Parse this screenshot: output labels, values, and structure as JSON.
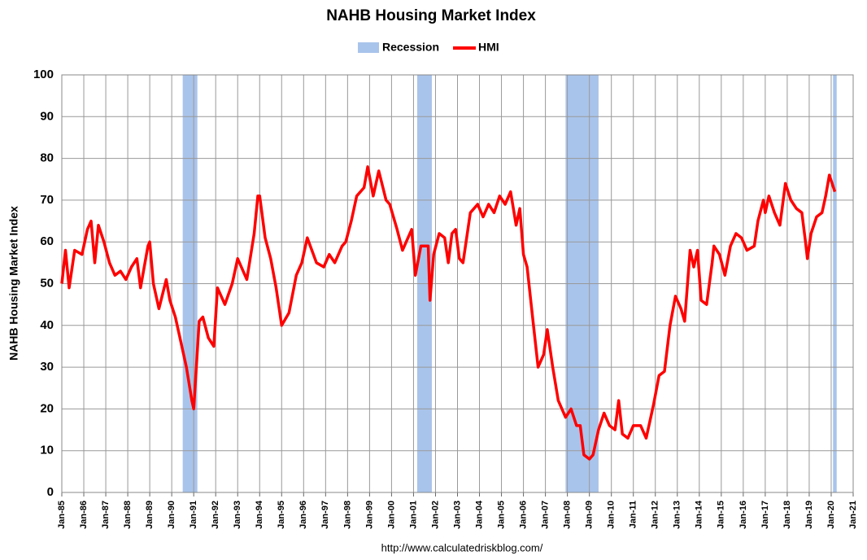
{
  "chart_data": {
    "type": "line",
    "title": "NAHB Housing Market Index",
    "y_label": "NAHB Housing Market Index",
    "source": "http://www.calculatedriskblog.com/",
    "x": [
      "1985-01",
      "1985-03",
      "1985-05",
      "1985-08",
      "1985-12",
      "1986-03",
      "1986-05",
      "1986-07",
      "1986-09",
      "1986-12",
      "1987-03",
      "1987-06",
      "1987-09",
      "1987-12",
      "1988-03",
      "1988-06",
      "1988-08",
      "1988-12",
      "1989-01",
      "1989-03",
      "1989-06",
      "1989-10",
      "1989-12",
      "1990-03",
      "1990-06",
      "1990-09",
      "1990-12",
      "1991-01",
      "1991-04",
      "1991-06",
      "1991-09",
      "1991-12",
      "1992-02",
      "1992-06",
      "1992-10",
      "1993-01",
      "1993-06",
      "1993-10",
      "1993-12",
      "1994-01",
      "1994-04",
      "1994-07",
      "1994-10",
      "1995-01",
      "1995-05",
      "1995-09",
      "1995-12",
      "1996-03",
      "1996-08",
      "1996-12",
      "1997-03",
      "1997-06",
      "1997-10",
      "1997-12",
      "1998-03",
      "1998-06",
      "1998-10",
      "1998-12",
      "1999-03",
      "1999-06",
      "1999-10",
      "1999-12",
      "2000-04",
      "2000-07",
      "2000-12",
      "2001-02",
      "2001-05",
      "2001-09",
      "2001-10",
      "2001-12",
      "2002-03",
      "2002-06",
      "2002-08",
      "2002-10",
      "2002-12",
      "2003-02",
      "2003-04",
      "2003-08",
      "2003-12",
      "2004-03",
      "2004-06",
      "2004-09",
      "2004-12",
      "2005-03",
      "2005-06",
      "2005-09",
      "2005-11",
      "2006-01",
      "2006-03",
      "2006-06",
      "2006-09",
      "2006-12",
      "2007-02",
      "2007-05",
      "2007-08",
      "2007-12",
      "2008-03",
      "2008-06",
      "2008-08",
      "2008-10",
      "2009-01",
      "2009-03",
      "2009-06",
      "2009-09",
      "2009-12",
      "2010-03",
      "2010-05",
      "2010-07",
      "2010-10",
      "2011-01",
      "2011-05",
      "2011-08",
      "2011-12",
      "2012-03",
      "2012-06",
      "2012-09",
      "2012-12",
      "2013-03",
      "2013-05",
      "2013-08",
      "2013-10",
      "2013-12",
      "2014-02",
      "2014-05",
      "2014-08",
      "2014-09",
      "2014-12",
      "2015-03",
      "2015-06",
      "2015-09",
      "2015-12",
      "2016-01",
      "2016-03",
      "2016-07",
      "2016-09",
      "2016-12",
      "2017-01",
      "2017-03",
      "2017-06",
      "2017-09",
      "2017-12",
      "2018-03",
      "2018-06",
      "2018-09",
      "2018-11",
      "2018-12",
      "2019-02",
      "2019-05",
      "2019-08",
      "2019-10",
      "2019-12",
      "2020-03"
    ],
    "series": [
      {
        "name": "HMI",
        "color": "#ff0000",
        "values": [
          50,
          58,
          49,
          58,
          57,
          63,
          65,
          55,
          64,
          60,
          55,
          52,
          53,
          51,
          54,
          56,
          49,
          59,
          60,
          50,
          44,
          51,
          46,
          42,
          36,
          30,
          22,
          20,
          41,
          42,
          37,
          35,
          49,
          45,
          50,
          56,
          51,
          62,
          71,
          71,
          61,
          56,
          49,
          40,
          43,
          52,
          55,
          61,
          55,
          54,
          57,
          55,
          59,
          60,
          65,
          71,
          73,
          78,
          71,
          77,
          70,
          69,
          63,
          58,
          63,
          52,
          59,
          59,
          46,
          57,
          62,
          61,
          55,
          62,
          63,
          56,
          55,
          67,
          69,
          66,
          69,
          67,
          71,
          69,
          72,
          64,
          68,
          57,
          54,
          42,
          30,
          33,
          39,
          30,
          22,
          18,
          20,
          16,
          16,
          9,
          8,
          9,
          15,
          19,
          16,
          15,
          22,
          14,
          13,
          16,
          16,
          13,
          21,
          28,
          29,
          40,
          47,
          44,
          41,
          58,
          54,
          58,
          46,
          45,
          55,
          59,
          57,
          52,
          59,
          62,
          61,
          60,
          58,
          59,
          65,
          70,
          67,
          71,
          67,
          64,
          74,
          70,
          68,
          67,
          60,
          56,
          62,
          66,
          67,
          71,
          76,
          72
        ]
      }
    ],
    "bands": {
      "name": "Recession",
      "color": "#a9c4eb",
      "ranges": [
        [
          "1990-07",
          "1991-03"
        ],
        [
          "2001-03",
          "2001-11"
        ],
        [
          "2007-12",
          "2009-06"
        ],
        [
          "2020-02",
          "2020-04"
        ]
      ]
    },
    "xlim": [
      "1985-01",
      "2021-01"
    ],
    "xticks": [
      {
        "value": "1985-01",
        "label": "Jan-85"
      },
      {
        "value": "1986-01",
        "label": "Jan-86"
      },
      {
        "value": "1987-01",
        "label": "Jan-87"
      },
      {
        "value": "1988-01",
        "label": "Jan-88"
      },
      {
        "value": "1989-01",
        "label": "Jan-89"
      },
      {
        "value": "1990-01",
        "label": "Jan-90"
      },
      {
        "value": "1991-01",
        "label": "Jan-91"
      },
      {
        "value": "1992-01",
        "label": "Jan-92"
      },
      {
        "value": "1993-01",
        "label": "Jan-93"
      },
      {
        "value": "1994-01",
        "label": "Jan-94"
      },
      {
        "value": "1995-01",
        "label": "Jan-95"
      },
      {
        "value": "1996-01",
        "label": "Jan-96"
      },
      {
        "value": "1997-01",
        "label": "Jan-97"
      },
      {
        "value": "1998-01",
        "label": "Jan-98"
      },
      {
        "value": "1999-01",
        "label": "Jan-99"
      },
      {
        "value": "2000-01",
        "label": "Jan-00"
      },
      {
        "value": "2001-01",
        "label": "Jan-01"
      },
      {
        "value": "2002-01",
        "label": "Jan-02"
      },
      {
        "value": "2003-01",
        "label": "Jan-03"
      },
      {
        "value": "2004-01",
        "label": "Jan-04"
      },
      {
        "value": "2005-01",
        "label": "Jan-05"
      },
      {
        "value": "2006-01",
        "label": "Jan-06"
      },
      {
        "value": "2007-01",
        "label": "Jan-07"
      },
      {
        "value": "2008-01",
        "label": "Jan-08"
      },
      {
        "value": "2009-01",
        "label": "Jan-09"
      },
      {
        "value": "2010-01",
        "label": "Jan-10"
      },
      {
        "value": "2011-01",
        "label": "Jan-11"
      },
      {
        "value": "2012-01",
        "label": "Jan-12"
      },
      {
        "value": "2013-01",
        "label": "Jan-13"
      },
      {
        "value": "2014-01",
        "label": "Jan-14"
      },
      {
        "value": "2015-01",
        "label": "Jan-15"
      },
      {
        "value": "2016-01",
        "label": "Jan-16"
      },
      {
        "value": "2017-01",
        "label": "Jan-17"
      },
      {
        "value": "2018-01",
        "label": "Jan-18"
      },
      {
        "value": "2019-01",
        "label": "Jan-19"
      },
      {
        "value": "2020-01",
        "label": "Jan-20"
      },
      {
        "value": "2021-01",
        "label": "Jan-21"
      }
    ],
    "ylim": [
      0,
      100
    ],
    "yticks": [
      0,
      10,
      20,
      30,
      40,
      50,
      60,
      70,
      80,
      90,
      100
    ],
    "grid": true
  }
}
